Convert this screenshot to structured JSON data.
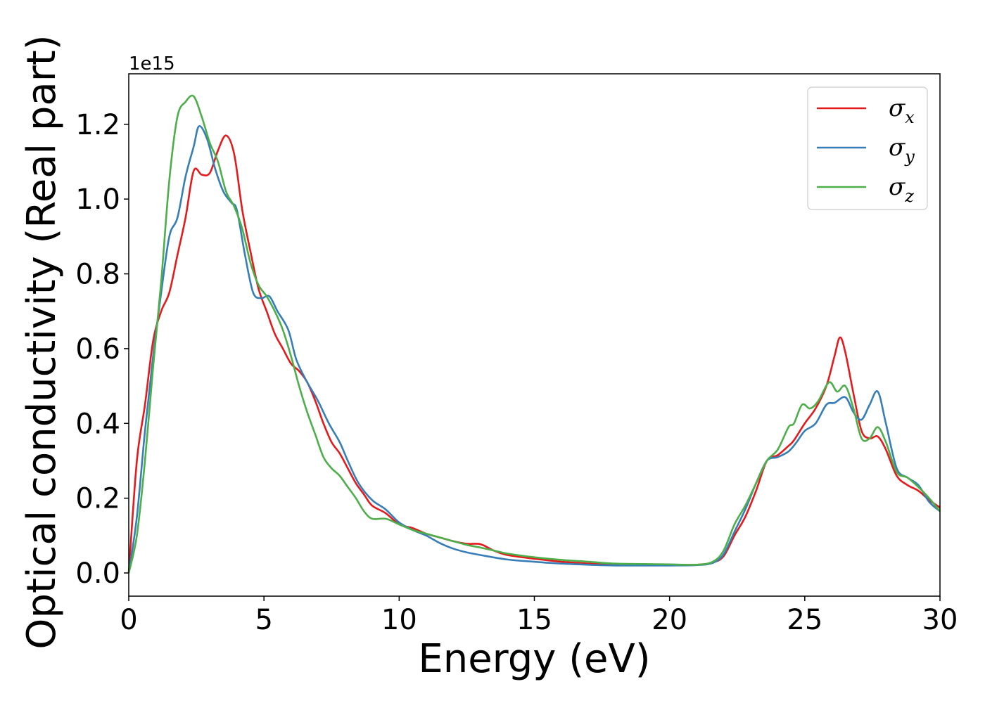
{
  "chart_data": {
    "type": "line",
    "title": "",
    "xlabel": "Energy (eV)",
    "ylabel": "Optical conductivity (Real part)",
    "y_offset_text": "1e15",
    "xlim": [
      0,
      30
    ],
    "ylim": [
      -0.062,
      1.335
    ],
    "xticks": [
      0,
      5,
      10,
      15,
      20,
      25,
      30
    ],
    "xtick_labels": [
      "0",
      "5",
      "10",
      "15",
      "20",
      "25",
      "30"
    ],
    "yticks": [
      0.0,
      0.2,
      0.4,
      0.6,
      0.8,
      1.0,
      1.2
    ],
    "ytick_labels": [
      "0.0",
      "0.2",
      "0.4",
      "0.6",
      "0.8",
      "1.0",
      "1.2"
    ],
    "grid": false,
    "legend_position": "top-right",
    "series": [
      {
        "name": "σx",
        "symbol": "σ",
        "subscript": "x",
        "color": "#e41a1c",
        "points": [
          [
            0,
            0
          ],
          [
            0.3,
            0.3
          ],
          [
            0.6,
            0.45
          ],
          [
            0.9,
            0.62
          ],
          [
            1.2,
            0.7
          ],
          [
            1.5,
            0.75
          ],
          [
            1.8,
            0.85
          ],
          [
            2.1,
            0.95
          ],
          [
            2.4,
            1.075
          ],
          [
            2.7,
            1.065
          ],
          [
            3.0,
            1.07
          ],
          [
            3.3,
            1.13
          ],
          [
            3.6,
            1.17
          ],
          [
            3.9,
            1.12
          ],
          [
            4.2,
            0.97
          ],
          [
            4.5,
            0.86
          ],
          [
            4.8,
            0.76
          ],
          [
            5.1,
            0.7
          ],
          [
            5.4,
            0.64
          ],
          [
            5.7,
            0.6
          ],
          [
            6.0,
            0.56
          ],
          [
            6.3,
            0.54
          ],
          [
            6.6,
            0.51
          ],
          [
            6.9,
            0.46
          ],
          [
            7.2,
            0.4
          ],
          [
            7.5,
            0.35
          ],
          [
            7.8,
            0.32
          ],
          [
            8.1,
            0.28
          ],
          [
            8.4,
            0.24
          ],
          [
            8.7,
            0.21
          ],
          [
            9.0,
            0.18
          ],
          [
            9.5,
            0.16
          ],
          [
            10,
            0.13
          ],
          [
            10.5,
            0.12
          ],
          [
            11,
            0.105
          ],
          [
            11.5,
            0.095
          ],
          [
            12,
            0.085
          ],
          [
            12.5,
            0.078
          ],
          [
            13,
            0.077
          ],
          [
            13.5,
            0.06
          ],
          [
            14,
            0.048
          ],
          [
            15,
            0.038
          ],
          [
            16,
            0.03
          ],
          [
            17,
            0.025
          ],
          [
            18,
            0.022
          ],
          [
            19,
            0.022
          ],
          [
            20,
            0.022
          ],
          [
            21,
            0.022
          ],
          [
            21.6,
            0.028
          ],
          [
            22.0,
            0.045
          ],
          [
            22.4,
            0.1
          ],
          [
            22.8,
            0.15
          ],
          [
            23.2,
            0.22
          ],
          [
            23.6,
            0.3
          ],
          [
            24.0,
            0.315
          ],
          [
            24.4,
            0.34
          ],
          [
            24.6,
            0.355
          ],
          [
            25.0,
            0.4
          ],
          [
            25.4,
            0.44
          ],
          [
            25.8,
            0.5
          ],
          [
            26.1,
            0.58
          ],
          [
            26.3,
            0.63
          ],
          [
            26.5,
            0.59
          ],
          [
            26.8,
            0.48
          ],
          [
            27.1,
            0.38
          ],
          [
            27.4,
            0.36
          ],
          [
            27.7,
            0.365
          ],
          [
            28.0,
            0.33
          ],
          [
            28.4,
            0.26
          ],
          [
            28.8,
            0.235
          ],
          [
            29.2,
            0.22
          ],
          [
            29.6,
            0.195
          ],
          [
            30,
            0.175
          ]
        ]
      },
      {
        "name": "σy",
        "symbol": "σ",
        "subscript": "y",
        "color": "#377eb8",
        "points": [
          [
            0,
            0
          ],
          [
            0.3,
            0.15
          ],
          [
            0.6,
            0.38
          ],
          [
            0.9,
            0.58
          ],
          [
            1.2,
            0.75
          ],
          [
            1.5,
            0.9
          ],
          [
            1.8,
            0.95
          ],
          [
            2.1,
            1.06
          ],
          [
            2.4,
            1.14
          ],
          [
            2.6,
            1.195
          ],
          [
            2.9,
            1.16
          ],
          [
            3.2,
            1.08
          ],
          [
            3.5,
            1.02
          ],
          [
            3.8,
            0.99
          ],
          [
            4.0,
            0.97
          ],
          [
            4.3,
            0.85
          ],
          [
            4.6,
            0.75
          ],
          [
            4.9,
            0.735
          ],
          [
            5.2,
            0.74
          ],
          [
            5.5,
            0.7
          ],
          [
            5.9,
            0.65
          ],
          [
            6.2,
            0.57
          ],
          [
            6.6,
            0.51
          ],
          [
            7.0,
            0.46
          ],
          [
            7.4,
            0.4
          ],
          [
            7.8,
            0.35
          ],
          [
            8.1,
            0.3
          ],
          [
            8.5,
            0.24
          ],
          [
            9.0,
            0.195
          ],
          [
            9.5,
            0.17
          ],
          [
            10,
            0.135
          ],
          [
            10.5,
            0.115
          ],
          [
            11,
            0.1
          ],
          [
            11.5,
            0.08
          ],
          [
            12,
            0.065
          ],
          [
            12.5,
            0.055
          ],
          [
            13,
            0.048
          ],
          [
            14,
            0.036
          ],
          [
            15,
            0.03
          ],
          [
            16,
            0.025
          ],
          [
            17,
            0.022
          ],
          [
            18,
            0.02
          ],
          [
            19,
            0.02
          ],
          [
            20,
            0.02
          ],
          [
            21,
            0.021
          ],
          [
            21.6,
            0.027
          ],
          [
            22.0,
            0.05
          ],
          [
            22.4,
            0.11
          ],
          [
            22.8,
            0.17
          ],
          [
            23.2,
            0.24
          ],
          [
            23.6,
            0.3
          ],
          [
            24.0,
            0.31
          ],
          [
            24.4,
            0.325
          ],
          [
            24.7,
            0.35
          ],
          [
            25.0,
            0.38
          ],
          [
            25.4,
            0.4
          ],
          [
            25.8,
            0.45
          ],
          [
            26.1,
            0.455
          ],
          [
            26.5,
            0.47
          ],
          [
            26.8,
            0.43
          ],
          [
            27.1,
            0.41
          ],
          [
            27.4,
            0.45
          ],
          [
            27.7,
            0.485
          ],
          [
            28.0,
            0.4
          ],
          [
            28.4,
            0.28
          ],
          [
            28.8,
            0.255
          ],
          [
            29.2,
            0.235
          ],
          [
            29.6,
            0.19
          ],
          [
            30,
            0.165
          ]
        ]
      },
      {
        "name": "σz",
        "symbol": "σ",
        "subscript": "z",
        "color": "#4daf4a",
        "points": [
          [
            0,
            0
          ],
          [
            0.3,
            0.1
          ],
          [
            0.6,
            0.3
          ],
          [
            0.9,
            0.55
          ],
          [
            1.2,
            0.78
          ],
          [
            1.5,
            1.05
          ],
          [
            1.8,
            1.22
          ],
          [
            2.1,
            1.26
          ],
          [
            2.4,
            1.275
          ],
          [
            2.7,
            1.22
          ],
          [
            3.0,
            1.15
          ],
          [
            3.3,
            1.1
          ],
          [
            3.6,
            1.02
          ],
          [
            3.9,
            0.98
          ],
          [
            4.2,
            0.92
          ],
          [
            4.5,
            0.83
          ],
          [
            4.8,
            0.77
          ],
          [
            5.1,
            0.74
          ],
          [
            5.4,
            0.7
          ],
          [
            5.7,
            0.65
          ],
          [
            6.0,
            0.58
          ],
          [
            6.3,
            0.5
          ],
          [
            6.6,
            0.43
          ],
          [
            6.9,
            0.37
          ],
          [
            7.2,
            0.31
          ],
          [
            7.5,
            0.28
          ],
          [
            7.8,
            0.26
          ],
          [
            8.1,
            0.23
          ],
          [
            8.4,
            0.2
          ],
          [
            8.7,
            0.165
          ],
          [
            9.0,
            0.145
          ],
          [
            9.5,
            0.145
          ],
          [
            10,
            0.13
          ],
          [
            10.5,
            0.115
          ],
          [
            11,
            0.105
          ],
          [
            11.5,
            0.095
          ],
          [
            12,
            0.085
          ],
          [
            12.5,
            0.075
          ],
          [
            13,
            0.068
          ],
          [
            13.5,
            0.06
          ],
          [
            14,
            0.052
          ],
          [
            15,
            0.042
          ],
          [
            16,
            0.035
          ],
          [
            17,
            0.03
          ],
          [
            18,
            0.025
          ],
          [
            19,
            0.024
          ],
          [
            20,
            0.023
          ],
          [
            21,
            0.022
          ],
          [
            21.6,
            0.03
          ],
          [
            22.0,
            0.06
          ],
          [
            22.4,
            0.13
          ],
          [
            22.8,
            0.18
          ],
          [
            23.2,
            0.24
          ],
          [
            23.6,
            0.3
          ],
          [
            24.0,
            0.33
          ],
          [
            24.4,
            0.39
          ],
          [
            24.6,
            0.4
          ],
          [
            24.9,
            0.45
          ],
          [
            25.2,
            0.44
          ],
          [
            25.5,
            0.46
          ],
          [
            25.9,
            0.51
          ],
          [
            26.2,
            0.485
          ],
          [
            26.5,
            0.5
          ],
          [
            26.8,
            0.44
          ],
          [
            27.1,
            0.36
          ],
          [
            27.4,
            0.36
          ],
          [
            27.7,
            0.39
          ],
          [
            28.0,
            0.35
          ],
          [
            28.4,
            0.27
          ],
          [
            28.8,
            0.255
          ],
          [
            29.2,
            0.23
          ],
          [
            29.6,
            0.2
          ],
          [
            30,
            0.165
          ]
        ]
      }
    ]
  }
}
